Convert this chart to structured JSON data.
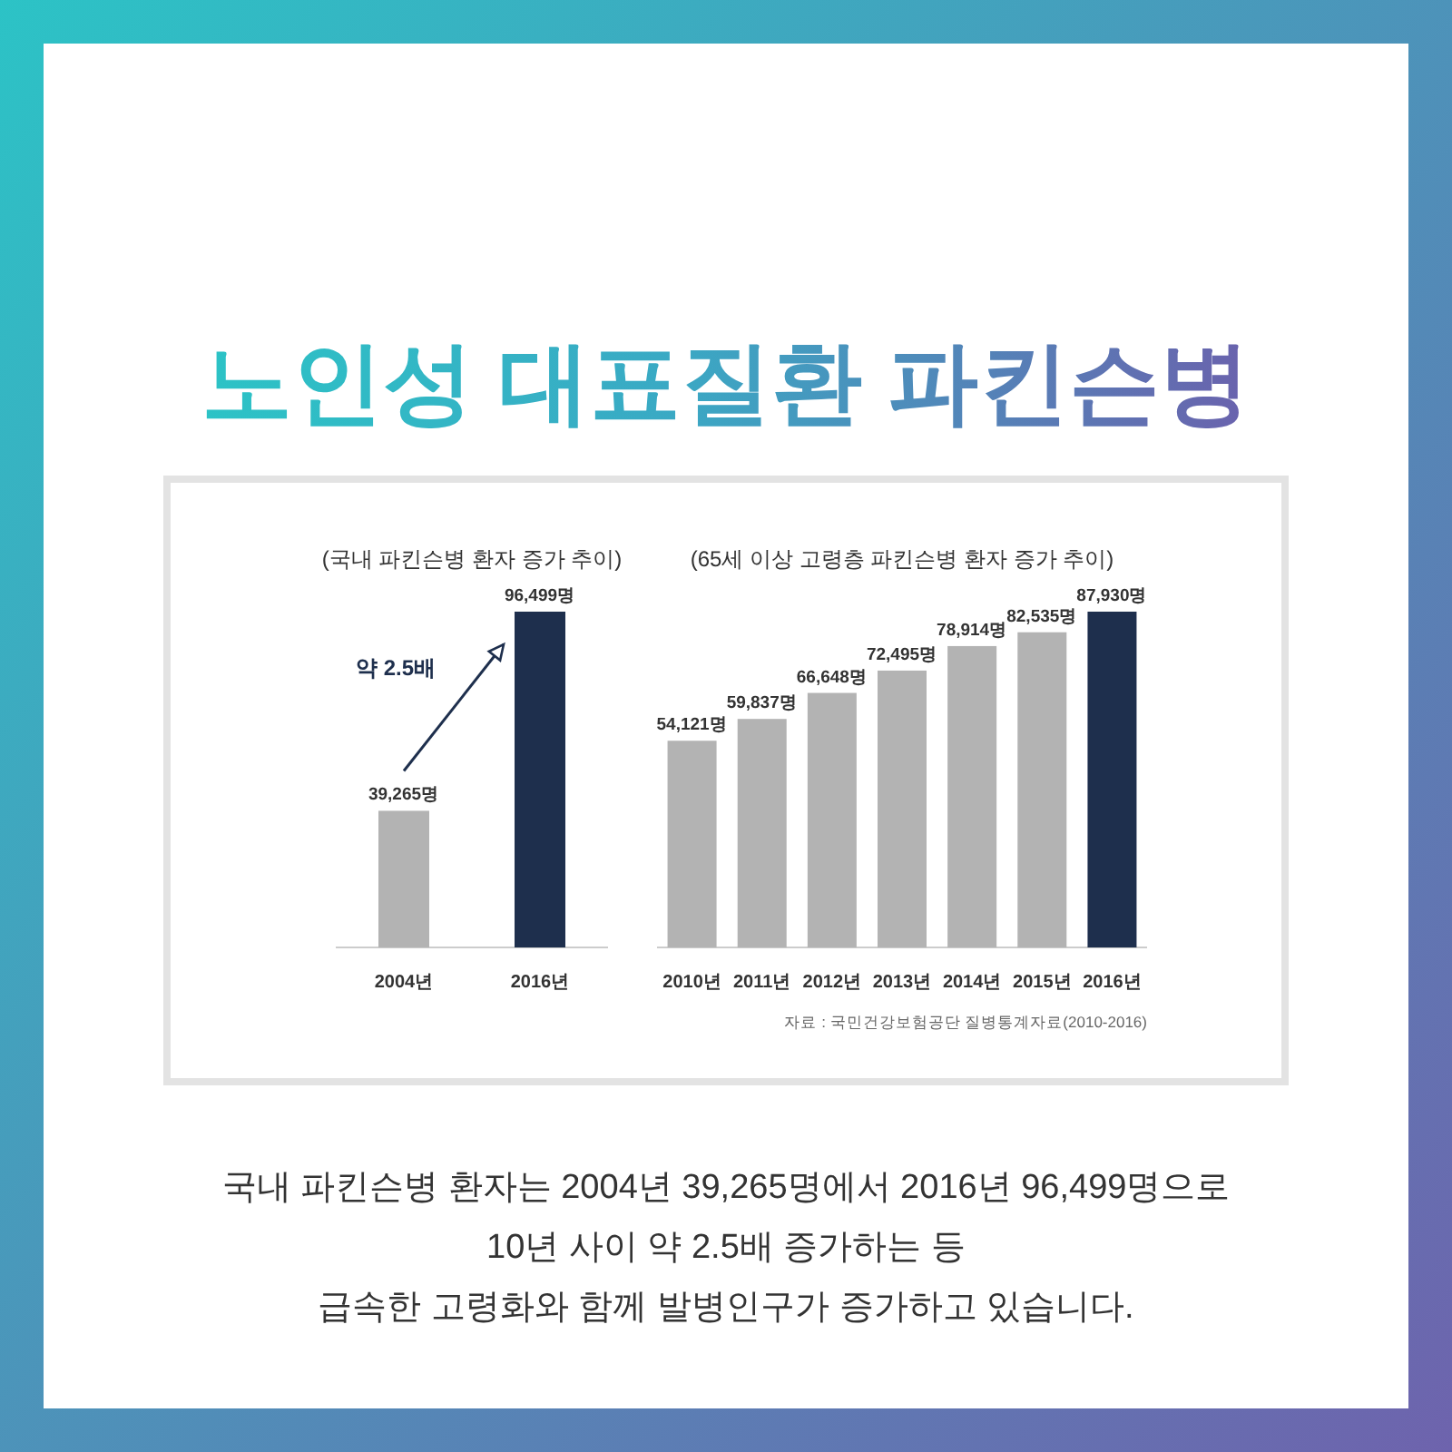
{
  "chart_data": [
    {
      "type": "other",
      "title": "노인성 대표질환 파킨슨병"
    },
    {
      "type": "bar",
      "title": "(국내 파킨슨병 환자 증가 추이)",
      "categories": [
        "2004년",
        "2016년"
      ],
      "values": [
        39265,
        96499
      ],
      "colors": [
        "#b3b3b3",
        "#1e2f4d"
      ],
      "value_labels": [
        "39,265명",
        "96,499명"
      ],
      "annotations": [
        "약 2.5배"
      ]
    },
    {
      "type": "bar",
      "title": "(65세 이상 고령층 파킨슨병 환자 증가 추이)",
      "categories": [
        "2010년",
        "2011년",
        "2012년",
        "2013년",
        "2014년",
        "2015년",
        "2016년"
      ],
      "values": [
        54121,
        59837,
        66648,
        72495,
        78914,
        82535,
        87930
      ],
      "colors": [
        "#b3b3b3",
        "#b3b3b3",
        "#b3b3b3",
        "#b3b3b3",
        "#b3b3b3",
        "#b3b3b3",
        "#1e2f4d"
      ],
      "value_labels": [
        "54,121명",
        "59,837명",
        "66,648명",
        "72,495명",
        "78,914명",
        "82,535명",
        "87,930명"
      ],
      "annotations": [
        "자료 : 국민건강보험공단 질병통계자료(2010-2016)"
      ]
    },
    {
      "type": "other",
      "annotations": [
        "국내 파킨슨병 환자는 2004년 39,265명에서 2016년 96,499명으로",
        "10년 사이 약 2.5배 증가하는 등",
        "급속한 고령화와 함께 발병인구가 증가하고 있습니다."
      ]
    }
  ]
}
